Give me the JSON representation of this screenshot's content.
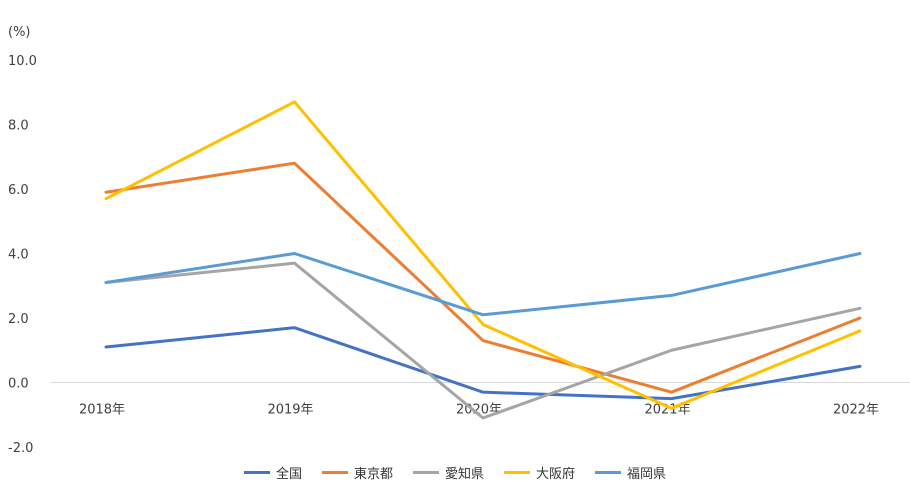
{
  "chart_data": {
    "type": "line",
    "unit_label": "(%)",
    "categories": [
      "2018年",
      "2019年",
      "2020年",
      "2021年",
      "2022年"
    ],
    "ylim": [
      -2.0,
      10.0
    ],
    "yticks": [
      -2.0,
      0.0,
      2.0,
      4.0,
      6.0,
      8.0,
      10.0
    ],
    "ytick_labels": [
      "-2.0",
      "0.0",
      "2.0",
      "4.0",
      "6.0",
      "8.0",
      "10.0"
    ],
    "grid": false,
    "legend_position": "bottom",
    "series": [
      {
        "name": "全国",
        "color": "#4472c4",
        "values": [
          1.1,
          1.7,
          -0.3,
          -0.5,
          0.5
        ]
      },
      {
        "name": "東京都",
        "color": "#ed7d31",
        "values": [
          5.9,
          6.8,
          1.3,
          -0.3,
          2.0
        ]
      },
      {
        "name": "愛知県",
        "color": "#a5a5a5",
        "values": [
          3.1,
          3.7,
          -1.1,
          1.0,
          2.3
        ]
      },
      {
        "name": "大阪府",
        "color": "#ffc000",
        "values": [
          5.7,
          8.7,
          1.8,
          -0.8,
          1.6
        ]
      },
      {
        "name": "福岡県",
        "color": "#5b9bd5",
        "values": [
          3.1,
          4.0,
          2.1,
          2.7,
          4.0
        ]
      }
    ]
  }
}
